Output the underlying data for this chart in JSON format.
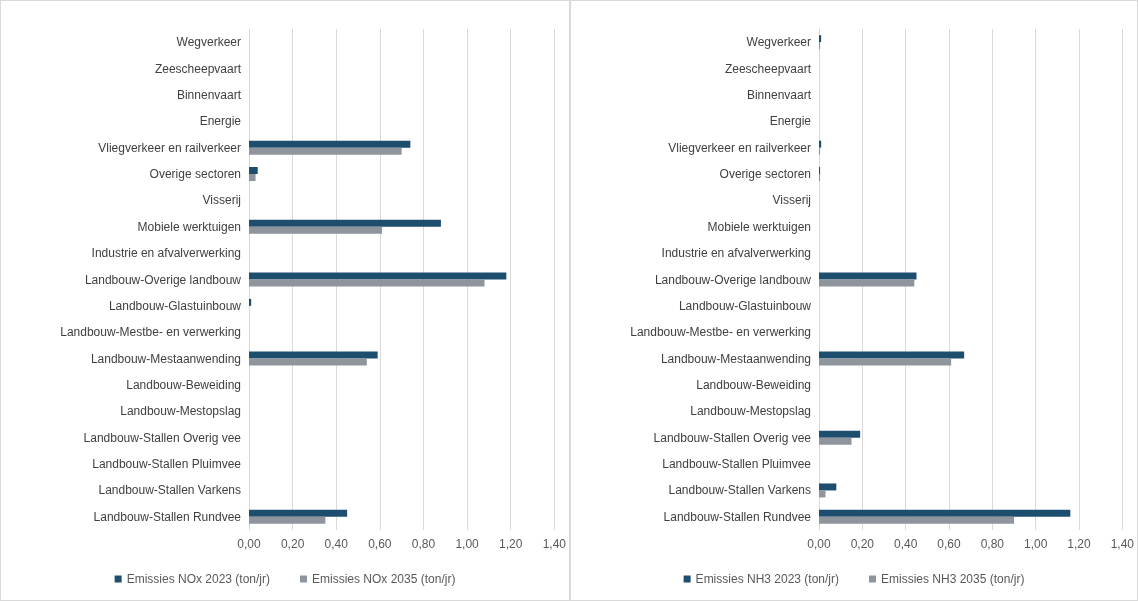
{
  "chart_data": [
    {
      "type": "bar",
      "orientation": "horizontal",
      "categories": [
        "Wegverkeer",
        "Zeescheepvaart",
        "Binnenvaart",
        "Energie",
        "Vliegverkeer en railverkeer",
        "Overige sectoren",
        "Visserij",
        "Mobiele werktuigen",
        "Industrie en afvalverwerking",
        "Landbouw-Overige landbouw",
        "Landbouw-Glastuinbouw",
        "Landbouw-Mestbe- en verwerking",
        "Landbouw-Mestaanwending",
        "Landbouw-Beweiding",
        "Landbouw-Mestopslag",
        "Landbouw-Stallen Overig vee",
        "Landbouw-Stallen Pluimvee",
        "Landbouw-Stallen Varkens",
        "Landbouw-Stallen Rundvee"
      ],
      "series": [
        {
          "name": "Emissies NOx 2023 (ton/jr)",
          "color": "#1d4e6e",
          "values": [
            0,
            0,
            0,
            0,
            0.74,
            0.04,
            0,
            0.88,
            0,
            1.18,
            0.01,
            0,
            0.59,
            0,
            0,
            0,
            0,
            0,
            0.45
          ]
        },
        {
          "name": "Emissies NOx 2035 (ton/jr)",
          "color": "#8e959c",
          "values": [
            0,
            0,
            0,
            0,
            0.7,
            0.03,
            0,
            0.61,
            0,
            1.08,
            0,
            0,
            0.54,
            0,
            0,
            0,
            0,
            0,
            0.35
          ]
        }
      ],
      "xlim": [
        0,
        1.4
      ],
      "xticks": [
        {
          "value": 0,
          "label": "0,00"
        },
        {
          "value": 0.2,
          "label": "0,20"
        },
        {
          "value": 0.4,
          "label": "0,40"
        },
        {
          "value": 0.6,
          "label": "0,60"
        },
        {
          "value": 0.8,
          "label": "0,80"
        },
        {
          "value": 1.0,
          "label": "1,00"
        },
        {
          "value": 1.2,
          "label": "1,20"
        },
        {
          "value": 1.4,
          "label": "1,40"
        }
      ],
      "grid": "x",
      "legend": "bottom"
    },
    {
      "type": "bar",
      "orientation": "horizontal",
      "categories": [
        "Wegverkeer",
        "Zeescheepvaart",
        "Binnenvaart",
        "Energie",
        "Vliegverkeer en railverkeer",
        "Overige sectoren",
        "Visserij",
        "Mobiele werktuigen",
        "Industrie en afvalverwerking",
        "Landbouw-Overige landbouw",
        "Landbouw-Glastuinbouw",
        "Landbouw-Mestbe- en verwerking",
        "Landbouw-Mestaanwending",
        "Landbouw-Beweiding",
        "Landbouw-Mestopslag",
        "Landbouw-Stallen Overig vee",
        "Landbouw-Stallen Pluimvee",
        "Landbouw-Stallen Varkens",
        "Landbouw-Stallen Rundvee"
      ],
      "series": [
        {
          "name": "Emissies NH3 2023 (ton/jr)",
          "color": "#1d4e6e",
          "values": [
            0.01,
            0,
            0,
            0,
            0.01,
            0.005,
            0,
            0,
            0,
            0.45,
            0,
            0,
            0.67,
            0,
            0,
            0.19,
            0,
            0.08,
            1.16
          ]
        },
        {
          "name": "Emissies NH3 2035 (ton/jr)",
          "color": "#8e959c",
          "values": [
            0.005,
            0,
            0,
            0,
            0.005,
            0.005,
            0,
            0,
            0,
            0.44,
            0,
            0,
            0.61,
            0,
            0,
            0.15,
            0,
            0.03,
            0.9
          ]
        }
      ],
      "xlim": [
        0,
        1.4
      ],
      "xticks": [
        {
          "value": 0,
          "label": "0,00"
        },
        {
          "value": 0.2,
          "label": "0,20"
        },
        {
          "value": 0.4,
          "label": "0,40"
        },
        {
          "value": 0.6,
          "label": "0,60"
        },
        {
          "value": 0.8,
          "label": "0,80"
        },
        {
          "value": 1.0,
          "label": "1,00"
        },
        {
          "value": 1.2,
          "label": "1,20"
        },
        {
          "value": 1.4,
          "label": "1,40"
        }
      ],
      "grid": "x",
      "legend": "bottom"
    }
  ]
}
